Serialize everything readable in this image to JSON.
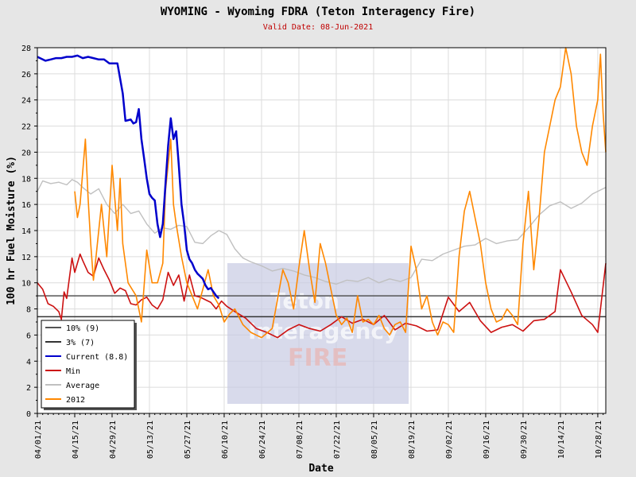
{
  "chart_data": {
    "type": "line",
    "title": "WYOMING - Wyoming FDRA (Teton Interagency Fire)",
    "subtitle": "Valid Date: 08-Jun-2021",
    "xlabel": "Date",
    "ylabel": "100 hr Fuel Moisture (%)",
    "ylim": [
      0,
      28
    ],
    "yticks": [
      0,
      2,
      4,
      6,
      8,
      10,
      12,
      14,
      16,
      18,
      20,
      22,
      24,
      26,
      28
    ],
    "x_range": [
      "04/01/21",
      "10/31/21"
    ],
    "x_ticks": [
      "04/01/21",
      "04/15/21",
      "04/29/21",
      "05/13/21",
      "05/27/21",
      "06/10/21",
      "06/24/21",
      "07/08/21",
      "07/22/21",
      "08/05/21",
      "08/19/21",
      "09/02/21",
      "09/16/21",
      "09/30/21",
      "10/14/21",
      "10/28/21"
    ],
    "grid": true,
    "legend_position": "bottom-left",
    "watermark": [
      "Teton",
      "Interagency",
      "FIRE"
    ],
    "reference_lines": [
      {
        "name": "10% (9)",
        "value": 9,
        "color": "#555555"
      },
      {
        "name": "3% (7)",
        "value": 7.4,
        "color": "#333333"
      }
    ],
    "series": [
      {
        "name": "Current (8.8)",
        "color": "#0000cc",
        "x": [
          "04/01/21",
          "04/02/21",
          "04/04/21",
          "04/06/21",
          "04/08/21",
          "04/10/21",
          "04/12/21",
          "04/14/21",
          "04/16/21",
          "04/18/21",
          "04/20/21",
          "04/22/21",
          "04/24/21",
          "04/26/21",
          "04/28/21",
          "05/01/21",
          "05/03/21",
          "05/04/21",
          "05/06/21",
          "05/07/21",
          "05/08/21",
          "05/09/21",
          "05/10/21",
          "05/11/21",
          "05/12/21",
          "05/13/21",
          "05/14/21",
          "05/15/21",
          "05/16/21",
          "05/17/21",
          "05/18/21",
          "05/19/21",
          "05/20/21",
          "05/21/21",
          "05/22/21",
          "05/23/21",
          "05/24/21",
          "05/25/21",
          "05/26/21",
          "05/27/21",
          "05/28/21",
          "05/29/21",
          "05/30/21",
          "05/31/21",
          "06/01/21",
          "06/02/21",
          "06/03/21",
          "06/04/21",
          "06/05/21",
          "06/06/21",
          "06/07/21",
          "06/08/21"
        ],
        "y": [
          27.3,
          27.2,
          27.0,
          27.1,
          27.2,
          27.2,
          27.3,
          27.3,
          27.4,
          27.2,
          27.3,
          27.2,
          27.1,
          27.1,
          26.8,
          26.8,
          24.5,
          22.4,
          22.5,
          22.2,
          22.3,
          23.3,
          21.0,
          19.5,
          18.0,
          16.8,
          16.5,
          16.3,
          14.5,
          13.5,
          14.5,
          17.5,
          20.5,
          22.6,
          21.0,
          21.6,
          19.0,
          16.0,
          14.5,
          12.5,
          11.8,
          11.5,
          11.0,
          10.7,
          10.5,
          10.3,
          9.8,
          9.5,
          9.6,
          9.3,
          9.0,
          8.8
        ]
      },
      {
        "name": "Min",
        "color": "#cc1111",
        "x": [
          "04/01/21",
          "04/03/21",
          "04/05/21",
          "04/07/21",
          "04/09/21",
          "04/10/21",
          "04/11/21",
          "04/12/21",
          "04/14/21",
          "04/15/21",
          "04/17/21",
          "04/18/21",
          "04/20/21",
          "04/22/21",
          "04/24/21",
          "04/26/21",
          "04/28/21",
          "04/30/21",
          "05/02/21",
          "05/04/21",
          "05/06/21",
          "05/08/21",
          "05/10/21",
          "05/12/21",
          "05/14/21",
          "05/16/21",
          "05/18/21",
          "05/20/21",
          "05/22/21",
          "05/24/21",
          "05/26/21",
          "05/28/21",
          "05/30/21",
          "06/01/21",
          "06/03/21",
          "06/05/21",
          "06/07/21",
          "06/09/21",
          "06/11/21",
          "06/14/21",
          "06/18/21",
          "06/22/21",
          "06/26/21",
          "06/30/21",
          "07/04/21",
          "07/08/21",
          "07/12/21",
          "07/16/21",
          "07/20/21",
          "07/24/21",
          "07/28/21",
          "08/01/21",
          "08/05/21",
          "08/09/21",
          "08/13/21",
          "08/17/21",
          "08/21/21",
          "08/25/21",
          "08/29/21",
          "09/02/21",
          "09/06/21",
          "09/10/21",
          "09/14/21",
          "09/18/21",
          "09/22/21",
          "09/26/21",
          "09/30/21",
          "10/04/21",
          "10/08/21",
          "10/12/21",
          "10/14/21",
          "10/18/21",
          "10/22/21",
          "10/26/21",
          "10/28/21",
          "10/31/21"
        ],
        "y": [
          10.0,
          9.5,
          8.4,
          8.2,
          7.8,
          7.2,
          9.3,
          8.8,
          11.9,
          10.8,
          12.2,
          11.7,
          10.8,
          10.5,
          11.9,
          11.0,
          10.2,
          9.2,
          9.6,
          9.4,
          8.4,
          8.3,
          8.7,
          8.9,
          8.3,
          8.0,
          8.7,
          10.8,
          9.8,
          10.6,
          8.6,
          10.6,
          9.0,
          8.9,
          8.7,
          8.5,
          8.0,
          8.6,
          8.2,
          7.8,
          7.3,
          6.5,
          6.2,
          5.8,
          6.4,
          6.8,
          6.5,
          6.3,
          6.8,
          7.4,
          6.9,
          7.2,
          6.8,
          7.5,
          6.4,
          6.9,
          6.7,
          6.3,
          6.4,
          8.9,
          7.8,
          8.5,
          7.1,
          6.2,
          6.6,
          6.8,
          6.3,
          7.1,
          7.2,
          7.8,
          11.0,
          9.3,
          7.5,
          6.8,
          6.2,
          11.5
        ]
      },
      {
        "name": "Average",
        "color": "#c0c0c0",
        "x": [
          "04/01/21",
          "04/03/21",
          "04/06/21",
          "04/09/21",
          "04/12/21",
          "04/14/21",
          "04/16/21",
          "04/18/21",
          "04/21/21",
          "04/24/21",
          "04/27/21",
          "04/30/21",
          "05/03/21",
          "05/06/21",
          "05/09/21",
          "05/12/21",
          "05/15/21",
          "05/18/21",
          "05/21/21",
          "05/24/21",
          "05/27/21",
          "05/30/21",
          "06/02/21",
          "06/05/21",
          "06/08/21",
          "06/11/21",
          "06/14/21",
          "06/17/21",
          "06/20/21",
          "06/24/21",
          "06/28/21",
          "07/02/21",
          "07/06/21",
          "07/10/21",
          "07/14/21",
          "07/18/21",
          "07/22/21",
          "07/26/21",
          "07/30/21",
          "08/03/21",
          "08/07/21",
          "08/11/21",
          "08/15/21",
          "08/19/21",
          "08/23/21",
          "08/27/21",
          "08/31/21",
          "09/04/21",
          "09/08/21",
          "09/12/21",
          "09/16/21",
          "09/20/21",
          "09/24/21",
          "09/28/21",
          "10/02/21",
          "10/06/21",
          "10/10/21",
          "10/14/21",
          "10/18/21",
          "10/22/21",
          "10/26/21",
          "10/30/21",
          "10/31/21"
        ],
        "y": [
          17.0,
          17.8,
          17.6,
          17.7,
          17.5,
          17.9,
          17.7,
          17.3,
          16.8,
          17.2,
          16.0,
          15.3,
          16.0,
          15.3,
          15.5,
          14.5,
          13.8,
          14.2,
          14.1,
          14.4,
          14.3,
          13.1,
          13.0,
          13.6,
          14.0,
          13.7,
          12.6,
          11.9,
          11.6,
          11.3,
          10.9,
          11.1,
          10.9,
          10.6,
          10.4,
          10.1,
          9.9,
          10.2,
          10.1,
          10.4,
          10.0,
          10.3,
          10.1,
          10.4,
          11.8,
          11.7,
          12.2,
          12.5,
          12.8,
          12.9,
          13.4,
          13.0,
          13.2,
          13.3,
          14.2,
          15.2,
          15.9,
          16.2,
          15.7,
          16.1,
          16.8,
          17.2,
          17.3
        ]
      },
      {
        "name": "2012",
        "color": "#ff8800",
        "x": [
          "04/15/21",
          "04/16/21",
          "04/17/21",
          "04/19/21",
          "04/20/21",
          "04/21/21",
          "04/22/21",
          "04/23/21",
          "04/25/21",
          "04/27/21",
          "04/29/21",
          "05/01/21",
          "05/02/21",
          "05/03/21",
          "05/05/21",
          "05/08/21",
          "05/10/21",
          "05/12/21",
          "05/14/21",
          "05/16/21",
          "05/18/21",
          "05/19/21",
          "05/21/21",
          "05/22/21",
          "05/23/21",
          "05/25/21",
          "05/27/21",
          "05/29/21",
          "05/31/21",
          "06/02/21",
          "06/04/21",
          "06/06/21",
          "06/08/21",
          "06/10/21",
          "06/12/21",
          "06/14/21",
          "06/17/21",
          "06/20/21",
          "06/24/21",
          "06/28/21",
          "07/02/21",
          "07/04/21",
          "07/06/21",
          "07/08/21",
          "07/10/21",
          "07/12/21",
          "07/14/21",
          "07/16/21",
          "07/18/21",
          "07/20/21",
          "07/22/21",
          "07/24/21",
          "07/26/21",
          "07/28/21",
          "07/30/21",
          "08/01/21",
          "08/03/21",
          "08/05/21",
          "08/07/21",
          "08/09/21",
          "08/11/21",
          "08/13/21",
          "08/15/21",
          "08/17/21",
          "08/19/21",
          "08/21/21",
          "08/23/21",
          "08/25/21",
          "08/27/21",
          "08/29/21",
          "08/31/21",
          "09/02/21",
          "09/04/21",
          "09/06/21",
          "09/08/21",
          "09/10/21",
          "09/12/21",
          "09/14/21",
          "09/16/21",
          "09/18/21",
          "09/20/21",
          "09/22/21",
          "09/24/21",
          "09/26/21",
          "09/28/21",
          "09/30/21",
          "10/02/21",
          "10/04/21",
          "10/06/21",
          "10/08/21",
          "10/10/21",
          "10/12/21",
          "10/14/21",
          "10/16/21",
          "10/18/21",
          "10/20/21",
          "10/22/21",
          "10/24/21",
          "10/26/21",
          "10/28/21",
          "10/29/21",
          "10/30/21",
          "10/31/21"
        ],
        "y": [
          17.0,
          15.0,
          16.0,
          21.0,
          16.5,
          13.0,
          10.2,
          12.0,
          16.0,
          12.0,
          19.0,
          14.0,
          18.0,
          13.0,
          10.0,
          9.0,
          7.0,
          12.5,
          10.0,
          10.0,
          11.5,
          17.0,
          21.0,
          16.0,
          14.5,
          12.0,
          10.0,
          9.0,
          8.0,
          9.5,
          11.0,
          9.0,
          8.3,
          7.0,
          7.6,
          8.0,
          6.8,
          6.2,
          5.8,
          6.5,
          11.0,
          10.0,
          8.0,
          11.2,
          14.0,
          11.0,
          8.5,
          13.0,
          11.5,
          9.5,
          7.5,
          6.8,
          7.3,
          6.2,
          9.0,
          7.0,
          7.2,
          6.8,
          7.5,
          6.5,
          6.0,
          6.8,
          7.0,
          6.2,
          12.8,
          11.0,
          8.0,
          9.0,
          7.0,
          6.0,
          7.0,
          6.8,
          6.2,
          12.0,
          15.5,
          17.0,
          15.0,
          13.0,
          10.0,
          8.0,
          7.0,
          7.2,
          8.0,
          7.5,
          6.8,
          13.0,
          17.0,
          11.0,
          15.0,
          20.0,
          22.0,
          24.0,
          25.0,
          28.0,
          26.0,
          22.0,
          20.0,
          19.0,
          22.0,
          24.0,
          27.5,
          23.0,
          20.0
        ]
      }
    ]
  },
  "legend": [
    {
      "label": "10% (9)",
      "color": "#555555"
    },
    {
      "label": "3% (7)",
      "color": "#333333"
    },
    {
      "label": "Current (8.8)",
      "color": "#0000cc"
    },
    {
      "label": "Min",
      "color": "#cc1111"
    },
    {
      "label": "Average",
      "color": "#c0c0c0"
    },
    {
      "label": "2012",
      "color": "#ff8800"
    }
  ]
}
